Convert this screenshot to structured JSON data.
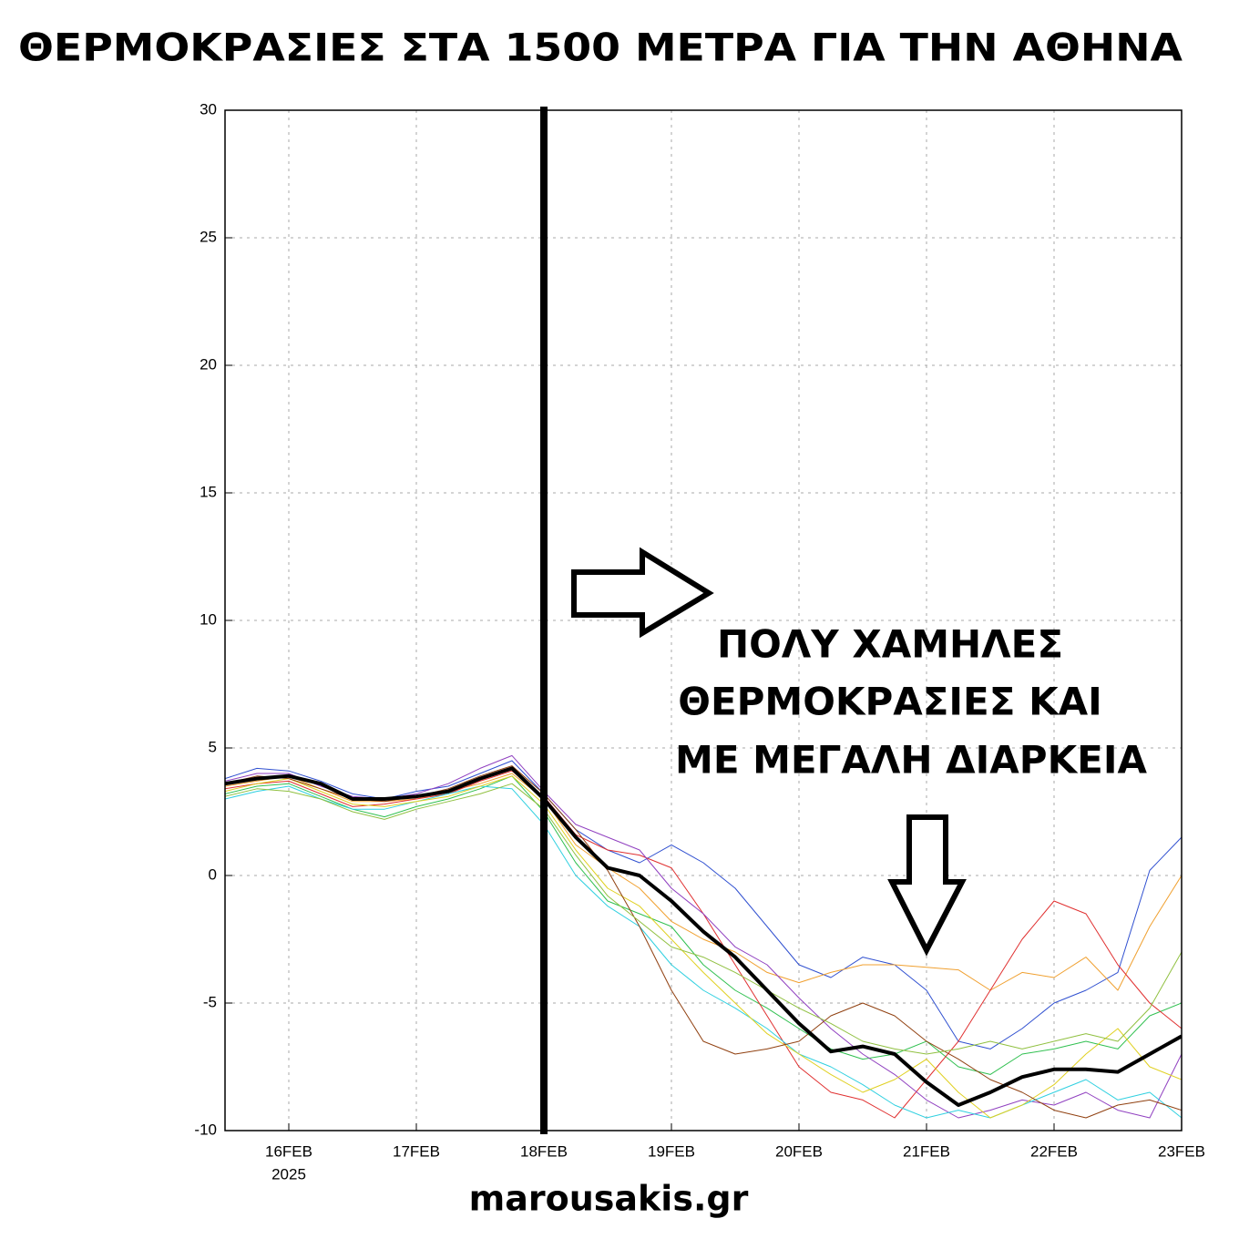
{
  "chart_data": {
    "type": "line",
    "title": "ΘΕΡΜΟΚΡΑΣΙΕΣ ΣΤΑ 1500 ΜΕΤΡΑ ΓΙΑ ΤΗΝ ΑΘΗΝΑ",
    "annotations": [
      "ΠΟΛΥ ΧΑΜΗΛΕΣ",
      "ΘΕΡΜΟΚΡΑΣΙΕΣ ΚΑΙ",
      "ΜΕ ΜΕΓΑΛΗ ΔΙΑΡΚΕΙΑ"
    ],
    "footer": "marousakis.gr",
    "year_label": "2025",
    "vline": 18,
    "xlim": [
      15.5,
      23
    ],
    "xticks": [
      {
        "value": 16,
        "label": "16FEB"
      },
      {
        "value": 17,
        "label": "17FEB"
      },
      {
        "value": 18,
        "label": "18FEB"
      },
      {
        "value": 19,
        "label": "19FEB"
      },
      {
        "value": 20,
        "label": "20FEB"
      },
      {
        "value": 21,
        "label": "21FEB"
      },
      {
        "value": 22,
        "label": "22FEB"
      },
      {
        "value": 23,
        "label": "23FEB"
      }
    ],
    "ylim": [
      -10,
      30
    ],
    "yticks": [
      -10,
      -5,
      0,
      5,
      10,
      15,
      20,
      25,
      30
    ],
    "grid": true,
    "x": [
      15.5,
      15.75,
      16,
      16.25,
      16.5,
      16.75,
      17,
      17.25,
      17.5,
      17.75,
      18,
      18.25,
      18.5,
      18.75,
      19,
      19.25,
      19.5,
      19.75,
      20,
      20.25,
      20.5,
      20.75,
      21,
      21.25,
      21.5,
      21.75,
      22,
      22.25,
      22.5,
      22.75,
      23
    ],
    "series": [
      {
        "color": "#3050d0",
        "linewidth": 1,
        "values": [
          3.8,
          4.2,
          4.1,
          3.7,
          3.2,
          3.0,
          3.3,
          3.5,
          4.0,
          4.5,
          3.2,
          1.8,
          1.0,
          0.5,
          1.2,
          0.5,
          -0.5,
          -2.0,
          -3.5,
          -4.0,
          -3.2,
          -3.5,
          -4.5,
          -6.5,
          -6.8,
          -6.0,
          -5.0,
          -4.5,
          -3.8,
          0.2,
          1.5
        ]
      },
      {
        "color": "#f0a030",
        "linewidth": 1,
        "values": [
          3.5,
          3.7,
          3.9,
          3.4,
          2.9,
          2.9,
          3.0,
          3.3,
          3.6,
          4.0,
          3.0,
          1.2,
          0.3,
          -0.5,
          -1.8,
          -2.5,
          -3.0,
          -3.8,
          -4.2,
          -3.8,
          -3.5,
          -3.5,
          -3.6,
          -3.7,
          -4.5,
          -3.8,
          -4.0,
          -3.2,
          -4.5,
          -2.0,
          0.0
        ]
      },
      {
        "color": "#30c050",
        "linewidth": 1,
        "values": [
          3.2,
          3.5,
          3.6,
          3.1,
          2.6,
          2.3,
          2.7,
          3.0,
          3.4,
          3.9,
          2.5,
          0.5,
          -1.0,
          -1.5,
          -2.0,
          -3.5,
          -4.5,
          -5.2,
          -6.0,
          -6.8,
          -7.2,
          -7.0,
          -6.5,
          -7.5,
          -7.8,
          -7.0,
          -6.8,
          -6.5,
          -6.8,
          -5.5,
          -5.0
        ]
      },
      {
        "color": "#e03030",
        "linewidth": 1,
        "values": [
          3.4,
          3.6,
          3.7,
          3.2,
          2.7,
          2.8,
          3.0,
          3.2,
          3.7,
          4.1,
          3.1,
          1.6,
          1.0,
          0.8,
          0.3,
          -1.5,
          -3.5,
          -5.5,
          -7.5,
          -8.5,
          -8.8,
          -9.5,
          -8.0,
          -6.5,
          -4.5,
          -2.5,
          -1.0,
          -1.5,
          -3.5,
          -5.0,
          -6.0
        ]
      },
      {
        "color": "#9040c0",
        "linewidth": 1,
        "values": [
          3.7,
          4.0,
          4.0,
          3.5,
          3.1,
          3.0,
          3.2,
          3.6,
          4.2,
          4.7,
          3.3,
          2.0,
          1.5,
          1.0,
          -0.5,
          -1.5,
          -2.8,
          -3.5,
          -4.8,
          -6.0,
          -7.0,
          -7.8,
          -8.8,
          -9.5,
          -9.2,
          -8.8,
          -9.0,
          -8.5,
          -9.2,
          -9.5,
          -7.0
        ]
      },
      {
        "color": "#30d0e0",
        "linewidth": 1,
        "values": [
          3.0,
          3.3,
          3.5,
          3.0,
          2.6,
          2.6,
          2.9,
          3.2,
          3.5,
          3.4,
          2.0,
          0.0,
          -1.2,
          -2.0,
          -3.5,
          -4.5,
          -5.2,
          -6.0,
          -7.0,
          -7.5,
          -8.2,
          -9.0,
          -9.5,
          -9.2,
          -9.5,
          -9.0,
          -8.5,
          -8.0,
          -8.8,
          -8.5,
          -9.5
        ]
      },
      {
        "color": "#e0d020",
        "linewidth": 1,
        "values": [
          3.3,
          3.6,
          3.8,
          3.3,
          2.8,
          2.7,
          2.9,
          3.1,
          3.5,
          3.9,
          2.8,
          1.0,
          -0.5,
          -1.2,
          -2.5,
          -3.8,
          -5.0,
          -6.2,
          -7.0,
          -7.8,
          -8.5,
          -8.0,
          -7.2,
          -8.5,
          -9.5,
          -9.0,
          -8.2,
          -7.0,
          -6.0,
          -7.5,
          -8.0
        ]
      },
      {
        "color": "#904010",
        "linewidth": 1,
        "values": [
          3.6,
          3.9,
          3.8,
          3.4,
          3.0,
          2.9,
          3.1,
          3.4,
          3.9,
          4.3,
          3.2,
          1.8,
          0.2,
          -2.0,
          -4.5,
          -6.5,
          -7.0,
          -6.8,
          -6.5,
          -5.5,
          -5.0,
          -5.5,
          -6.5,
          -7.2,
          -8.0,
          -8.5,
          -9.2,
          -9.5,
          -9.0,
          -8.8,
          -9.2
        ]
      },
      {
        "color": "#90c040",
        "linewidth": 1,
        "values": [
          3.1,
          3.4,
          3.3,
          3.0,
          2.5,
          2.2,
          2.6,
          2.9,
          3.2,
          3.6,
          2.6,
          0.8,
          -0.8,
          -1.8,
          -2.8,
          -3.2,
          -3.8,
          -4.5,
          -5.2,
          -5.8,
          -6.5,
          -6.8,
          -7.0,
          -6.8,
          -6.5,
          -6.8,
          -6.5,
          -6.2,
          -6.5,
          -5.2,
          -3.0
        ]
      },
      {
        "color": "#000000",
        "linewidth": 4,
        "values": [
          3.6,
          3.8,
          3.9,
          3.6,
          3.0,
          3.0,
          3.1,
          3.3,
          3.8,
          4.2,
          3.0,
          1.5,
          0.3,
          0.0,
          -1.0,
          -2.2,
          -3.2,
          -4.5,
          -5.8,
          -6.9,
          -6.7,
          -7.0,
          -8.1,
          -9.0,
          -8.5,
          -7.9,
          -7.6,
          -7.6,
          -7.7,
          -7.0,
          -6.3
        ]
      }
    ]
  }
}
